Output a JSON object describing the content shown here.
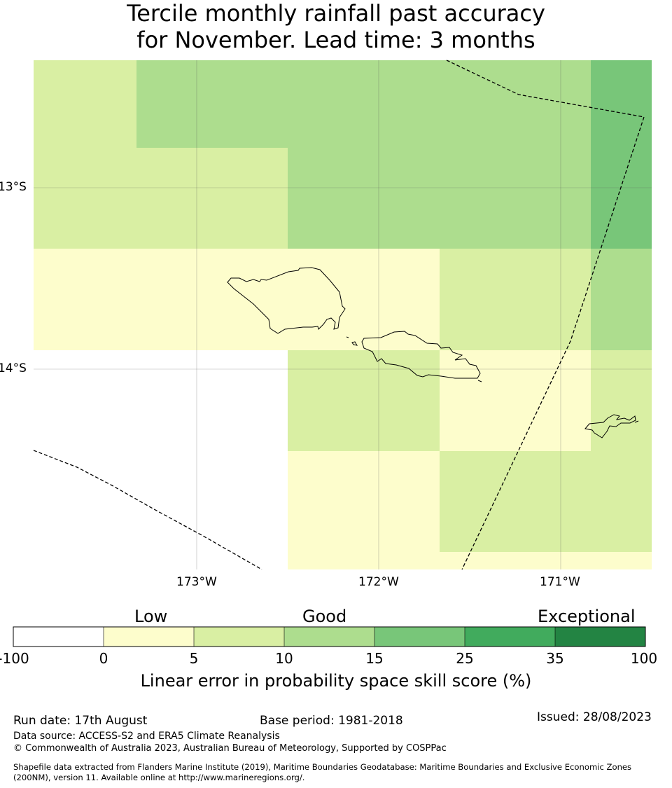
{
  "title": {
    "line1": "Tercile monthly rainfall past accuracy",
    "line2": "for November. Lead time: 3 months"
  },
  "map": {
    "lat_labels": [
      "13°S",
      "14°S"
    ],
    "lon_labels": [
      "173°W",
      "172°W",
      "171°W"
    ],
    "colors": {
      "white": "#ffffff",
      "c0_5": "#fdfdcc",
      "c5_10": "#d9efa3",
      "c10_15": "#addd8e",
      "c15_25": "#78c679",
      "c25_35": "#41ab5d",
      "c35_100": "#238443"
    }
  },
  "colorbar": {
    "words": [
      "Low",
      "Good",
      "Exceptional"
    ],
    "ticks": [
      "-100",
      "0",
      "5",
      "10",
      "15",
      "25",
      "35",
      "100"
    ],
    "label": "Linear error in probability space skill score (%)"
  },
  "footer": {
    "run_date": "Run date: 17th August",
    "base_period": "Base period: 1981-2018",
    "issued": "Issued: 28/08/2023",
    "data_source": "Data source: ACCESS-S2 and ERA5 Climate Reanalysis",
    "copyright": "© Commonwealth of Australia 2023, Australian Bureau of Meteorology, Supported by COSPPac",
    "shapefile_line1": "Shapefile data extracted from Flanders Marine Institute (2019), Maritime Boundaries Geodatabase: Maritime Boundaries and Exclusive Economic Zones",
    "shapefile_line2": "(200NM), version 11. Available online at http://www.marineregions.org/."
  }
}
